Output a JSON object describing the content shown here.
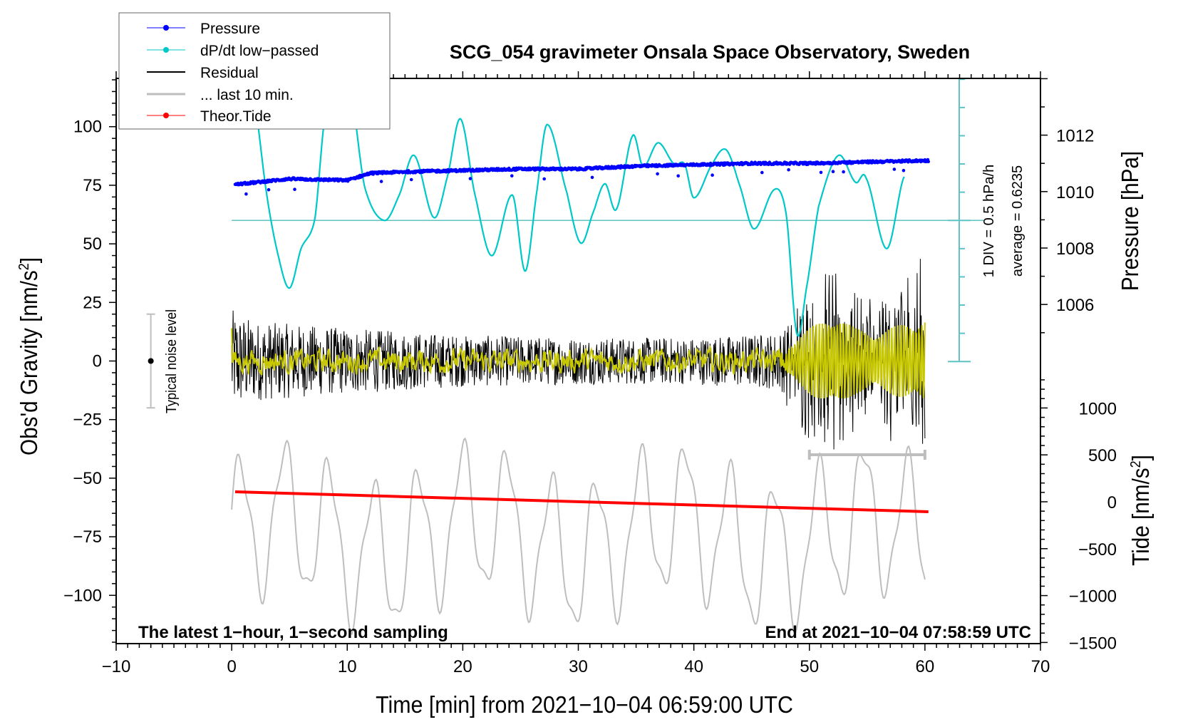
{
  "chart_data": {
    "type": "line",
    "title": "SCG_054 gravimeter Onsala Space Observatory, Sweden",
    "xlabel": "Time [min] from 2021−10−04 06:59:00 UTC",
    "ylabel_left": "Obs'd Gravity [nm/s",
    "ylabel_left_sup": "2",
    "ylabel_left_close": "]",
    "ylabel_right_pressure": "Pressure [hPa]",
    "ylabel_right_tide": "Tide [nm/s",
    "ylabel_right_tide_sup": "2",
    "ylabel_right_tide_close": "]",
    "xlim": [
      -10,
      70
    ],
    "ylim_left": [
      -120.6,
      120.6
    ],
    "ylim_pressure": [
      1004.0,
      1014.05
    ],
    "ylim_tide": [
      -1500,
      1400
    ],
    "x_ticks": [
      -10,
      0,
      10,
      20,
      30,
      40,
      50,
      60,
      70
    ],
    "x_tick_labels": [
      "−10",
      "0",
      "10",
      "20",
      "30",
      "40",
      "50",
      "60",
      "70"
    ],
    "y_left_ticks": [
      100,
      75,
      50,
      25,
      0,
      -25,
      -50,
      -75,
      -100
    ],
    "y_left_tick_labels": [
      "100",
      "75",
      "50",
      "25",
      "0",
      "−25",
      "−50",
      "−75",
      "−100"
    ],
    "y_pressure_ticks": [
      1012,
      1010,
      1008,
      1006
    ],
    "y_pressure_tick_labels": [
      "1012",
      "1010",
      "1008",
      "1006"
    ],
    "y_tide_ticks": [
      1000,
      500,
      0,
      -500,
      -1000,
      -1500
    ],
    "y_tide_tick_labels": [
      "1000",
      "500",
      "0",
      "−500",
      "−1000",
      "−1500"
    ],
    "grid": false,
    "legend_position": "top-left",
    "legend": [
      {
        "label": "Pressure",
        "color": "#0000ff",
        "marker": "dot"
      },
      {
        "label": "dP/dt low−passed",
        "color": "#00c8c8",
        "marker": "dot"
      },
      {
        "label": "Residual",
        "color": "#000000",
        "marker": "line"
      },
      {
        "label": "... last 10 min.",
        "color": "#bebebe",
        "marker": "line"
      },
      {
        "label": "Theor.Tide",
        "color": "#ff0000",
        "marker": "dot"
      }
    ],
    "series": [
      {
        "name": "Pressure",
        "axis": "pressure",
        "color": "#0000ff",
        "x": [
          0.3,
          5,
          10,
          12,
          15,
          20,
          25,
          30,
          35,
          40,
          45,
          50,
          55,
          60.3
        ],
        "y": [
          1010.25,
          1010.45,
          1010.4,
          1010.65,
          1010.7,
          1010.75,
          1010.8,
          1010.8,
          1010.9,
          1010.95,
          1011.0,
          1011.0,
          1011.05,
          1011.1
        ]
      },
      {
        "name": "dP/dt low-passed",
        "axis": "div",
        "zero_level_left_units": 60,
        "div_hPa_per_h": 0.5,
        "color": "#00c8c8",
        "x": [
          0.0,
          1.0,
          2.0,
          3.0,
          4.0,
          5.0,
          6.0,
          7.2,
          8.0,
          8.6,
          9.4,
          10.2,
          11.5,
          13.2,
          14.5,
          15.8,
          17.5,
          18.7,
          19.8,
          21.0,
          22.5,
          24.3,
          25.4,
          26.4,
          27.3,
          29.0,
          30.2,
          31.3,
          32.3,
          33.3,
          34.7,
          35.6,
          36.9,
          38.3,
          39.2,
          40.0,
          41.6,
          42.8,
          44.0,
          45.2,
          47.0,
          48.0,
          48.9,
          49.7,
          50.8,
          52.5,
          54.0,
          54.9,
          56.7,
          58.2
        ],
        "y": [
          7.0,
          6.0,
          4.2,
          1.0,
          -1.2,
          -2.4,
          -1.0,
          0.05,
          3.5,
          5.5,
          6.5,
          5.0,
          1.2,
          0.0,
          0.9,
          2.3,
          0.1,
          1.6,
          3.6,
          1.0,
          -1.25,
          0.9,
          -1.8,
          1.0,
          3.4,
          1.0,
          -0.8,
          0.3,
          1.3,
          0.4,
          3.0,
          1.9,
          2.75,
          2.0,
          2.0,
          0.8,
          2.0,
          2.5,
          1.2,
          -0.3,
          1.1,
          0.2,
          -4.0,
          -2.5,
          0.5,
          2.3,
          1.35,
          1.5,
          -1.0,
          1.55
        ]
      },
      {
        "name": "Residual",
        "axis": "left",
        "color": "#000000",
        "x_range": [
          0,
          60
        ],
        "amplitude_envelope": {
          "x": [
            0,
            2,
            10,
            20,
            30,
            40,
            47,
            48,
            50,
            52,
            54,
            56,
            58,
            60
          ],
          "amp": [
            22,
            17,
            14,
            11,
            10,
            10,
            12,
            14,
            22,
            27,
            22,
            18,
            26,
            30
          ]
        }
      },
      {
        "name": "Residual (smoothed)",
        "axis": "left",
        "color": "#c8c800",
        "x_range": [
          0,
          60
        ],
        "amplitude_envelope": {
          "x": [
            0,
            47,
            48,
            50,
            52,
            54,
            56,
            58,
            60
          ],
          "amp": [
            4,
            4,
            6,
            14,
            20,
            14,
            12,
            16,
            18
          ]
        }
      },
      {
        "name": "... last 10 min.",
        "axis": "left",
        "color": "#bebebe",
        "x_range": [
          0,
          60
        ],
        "center": -75,
        "amplitude": 35
      },
      {
        "name": "Theor.Tide",
        "axis": "tide",
        "color": "#ff0000",
        "x": [
          0.3,
          60.3
        ],
        "y": [
          106,
          -106
        ]
      }
    ],
    "annotations": {
      "noise_label": "Typical noise level",
      "noise_range": [
        -20,
        20
      ],
      "noise_x": -7,
      "div_label": "1 DIV = 0.5 hPa/h",
      "average_label": "average = 0.6235",
      "bottom_left": "The latest 1−hour, 1−second sampling",
      "bottom_right": "End at 2021−10−04 07:58:59 UTC",
      "last10_bar_x": [
        50,
        60
      ],
      "last10_bar_y": -40
    }
  }
}
